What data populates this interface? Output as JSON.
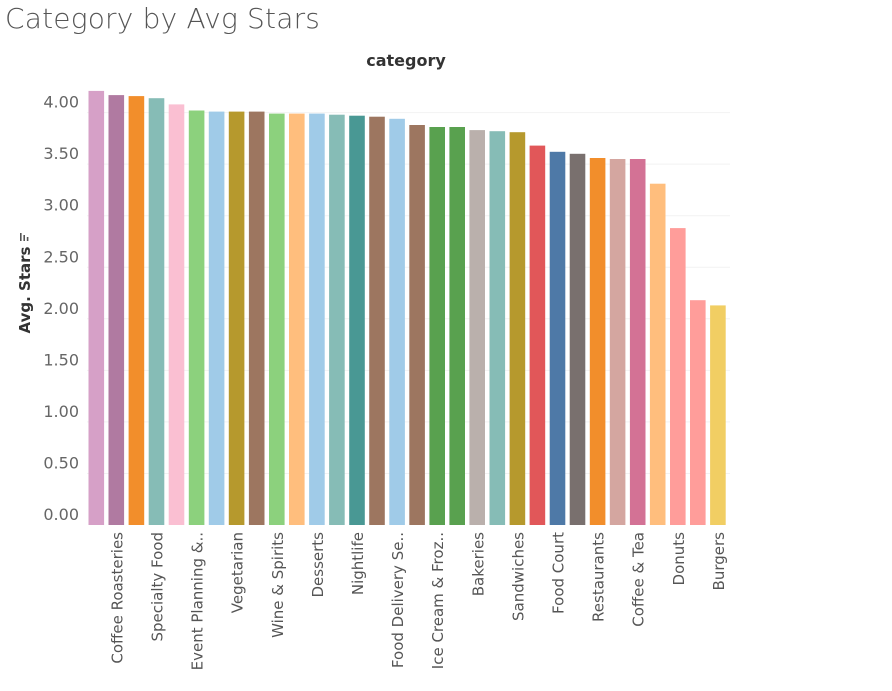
{
  "title": "Category by Avg Stars",
  "chart_data": {
    "type": "bar",
    "header": "category",
    "ylabel": "Avg. Stars",
    "ylabel_icon": "sort-descending-icon",
    "ylim": [
      0,
      4.3
    ],
    "yticks": [
      "0.00",
      "0.50",
      "1.00",
      "1.50",
      "2.00",
      "2.50",
      "3.00",
      "3.50",
      "4.00"
    ],
    "grid": true,
    "categories": [
      "",
      "Coffee Roasteries",
      "",
      "Specialty Food",
      "",
      "Event Planning &..",
      "",
      "Vegetarian",
      "",
      "Wine & Spirits",
      "",
      "Desserts",
      "",
      "Nightlife",
      "",
      "Food Delivery Se..",
      "",
      "Ice Cream & Froz..",
      "",
      "Bakeries",
      "",
      "Sandwiches",
      "",
      "Food Court",
      "",
      "Restaurants",
      "",
      "Coffee & Tea",
      "",
      "Donuts",
      "",
      "Burgers"
    ],
    "values": [
      4.21,
      4.17,
      4.16,
      4.14,
      4.08,
      4.02,
      4.01,
      4.01,
      4.01,
      3.99,
      3.99,
      3.99,
      3.98,
      3.97,
      3.96,
      3.94,
      3.88,
      3.86,
      3.86,
      3.83,
      3.82,
      3.81,
      3.68,
      3.62,
      3.6,
      3.56,
      3.55,
      3.55,
      3.31,
      2.88,
      2.18,
      2.13
    ],
    "colors": [
      "#d6a0c7",
      "#b07aa1",
      "#f28e2b",
      "#86bcb6",
      "#fabfd2",
      "#8cd17d",
      "#a0cbe8",
      "#b6992d",
      "#9d7660",
      "#8cd17d",
      "#ffbe7d",
      "#a0cbe8",
      "#86bcb6",
      "#499894",
      "#9d7660",
      "#a0cbe8",
      "#9d7660",
      "#59a14f",
      "#59a14f",
      "#bab0ac",
      "#86bcb6",
      "#b6992d",
      "#e15759",
      "#4e79a7",
      "#79706e",
      "#f28e2b",
      "#d4a6a0",
      "#d37295",
      "#ffbe7d",
      "#ff9d9a",
      "#ff9d9a",
      "#f1ce63"
    ]
  }
}
